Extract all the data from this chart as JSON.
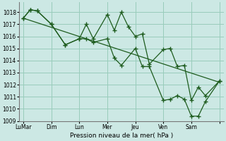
{
  "xlabel": "Pression niveau de la mer( hPa )",
  "bg_color": "#cce8e4",
  "grid_color": "#99ccbb",
  "line_color": "#1e5c1e",
  "marker": "+",
  "markersize": 4,
  "linewidth": 0.9,
  "ylim": [
    1009,
    1018.8
  ],
  "yticks": [
    1009,
    1010,
    1011,
    1012,
    1013,
    1014,
    1015,
    1016,
    1017,
    1018
  ],
  "xlim": [
    -0.3,
    14.3
  ],
  "day_tick_x": [
    0,
    2,
    4,
    6,
    8,
    10,
    12,
    14
  ],
  "day_tick_labels": [
    "LuMar",
    "Dim",
    "Lun",
    "Mer",
    "Jeu",
    "Ven",
    "Sam",
    ""
  ],
  "series1_x": [
    0,
    0.5,
    1,
    2,
    3,
    4,
    4.5,
    5,
    6,
    6.5,
    7,
    7.5,
    8,
    8.5,
    9,
    10,
    10.5,
    11,
    11.5,
    12,
    12.5,
    13,
    14
  ],
  "series1_y": [
    1017.5,
    1018.2,
    1018.1,
    1017.0,
    1015.3,
    1015.8,
    1017.0,
    1015.8,
    1017.8,
    1016.5,
    1018.0,
    1016.8,
    1016.0,
    1016.2,
    1013.7,
    1014.9,
    1015.0,
    1013.5,
    1013.6,
    1010.7,
    1011.8,
    1011.1,
    1012.3
  ],
  "series2_x": [
    0,
    0.5,
    1,
    2,
    3,
    4,
    4.5,
    5,
    6,
    6.5,
    7,
    8,
    8.5,
    9,
    10,
    10.5,
    11,
    11.5,
    12,
    12.5,
    13,
    14
  ],
  "series2_y": [
    1017.5,
    1018.2,
    1018.1,
    1017.0,
    1015.3,
    1015.8,
    1015.8,
    1015.5,
    1015.8,
    1014.2,
    1013.6,
    1015.0,
    1013.5,
    1013.5,
    1010.7,
    1010.8,
    1011.1,
    1010.8,
    1009.4,
    1009.4,
    1010.6,
    1012.3
  ],
  "trend_x": [
    0,
    14
  ],
  "trend_y": [
    1017.5,
    1012.2
  ]
}
